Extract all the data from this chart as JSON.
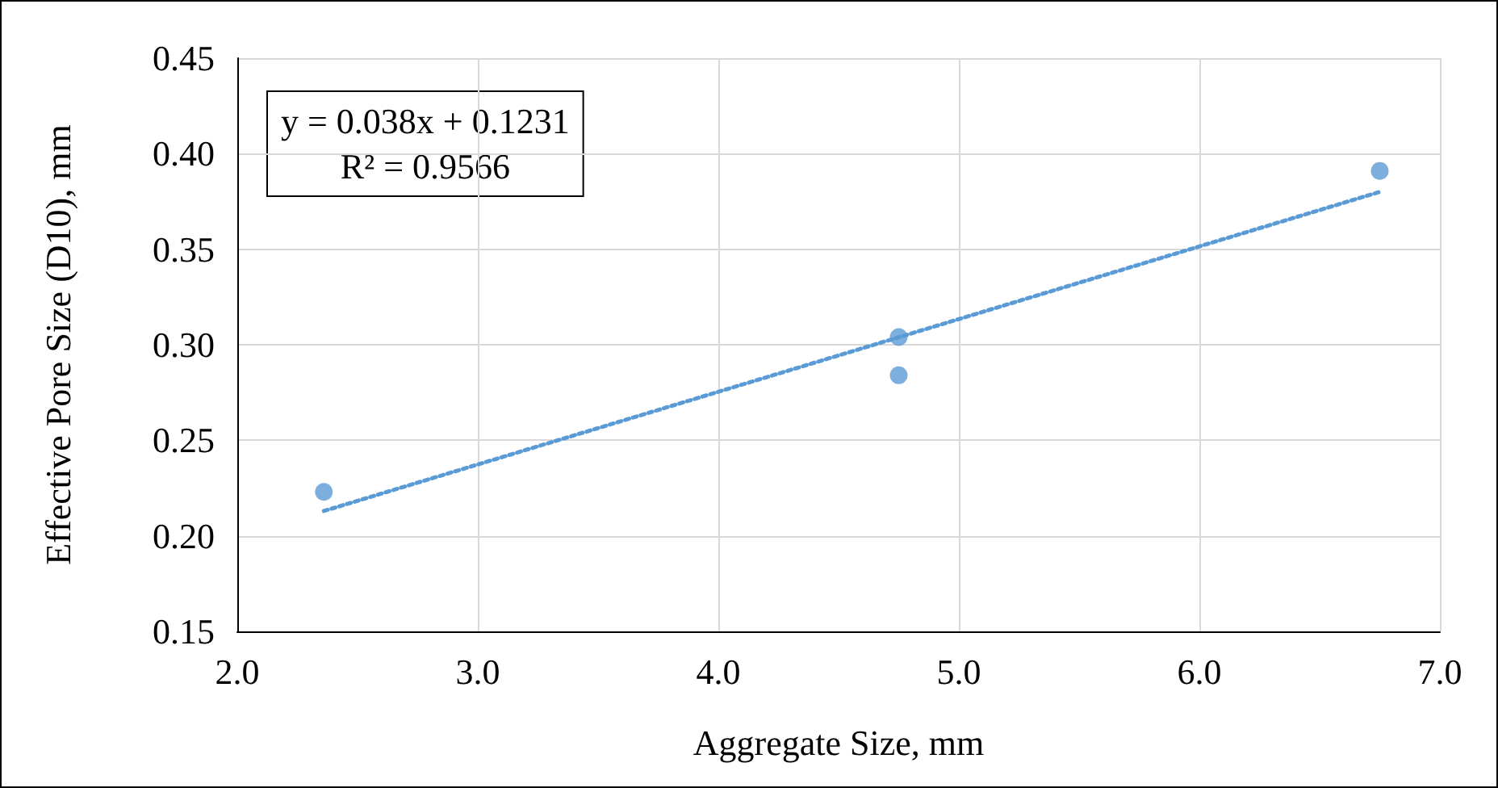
{
  "chart_data": {
    "type": "scatter",
    "xlabel": "Aggregate Size, mm",
    "ylabel": "Effective Pore Size (D10), mm",
    "annotations": [
      "y = 0.038x + 0.1231",
      "R² = 0.9566"
    ],
    "series": [
      {
        "type": "scatter",
        "color": "#5b9bd5",
        "x": [
          2.36,
          4.75,
          4.75,
          6.75
        ],
        "values": [
          0.223,
          0.304,
          0.284,
          0.391
        ],
        "marker": "circle"
      },
      {
        "type": "line",
        "color": "#5b9bd5",
        "x": [
          2.36,
          6.75
        ],
        "values": [
          0.213,
          0.38
        ],
        "line_style": "dotted",
        "marker": "none"
      }
    ],
    "xlim": [
      2,
      7
    ],
    "xticks": [
      {
        "value": 2,
        "label": "2.0"
      },
      {
        "value": 3,
        "label": "3.0"
      },
      {
        "value": 4,
        "label": "4.0"
      },
      {
        "value": 5,
        "label": "5.0"
      },
      {
        "value": 6,
        "label": "6.0"
      },
      {
        "value": 7,
        "label": "7.0"
      }
    ],
    "ylim": [
      0.15,
      0.45
    ],
    "yticks": [
      {
        "value": 0.15,
        "label": "0.15"
      },
      {
        "value": 0.2,
        "label": "0.20"
      },
      {
        "value": 0.25,
        "label": "0.25"
      },
      {
        "value": 0.3,
        "label": "0.30"
      },
      {
        "value": 0.35,
        "label": "0.35"
      },
      {
        "value": 0.4,
        "label": "0.40"
      },
      {
        "value": 0.45,
        "label": "0.45"
      }
    ],
    "grid": true
  }
}
